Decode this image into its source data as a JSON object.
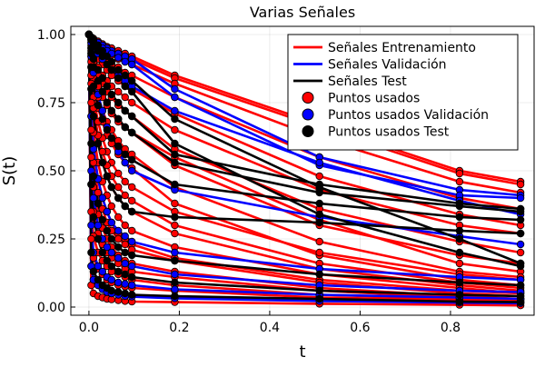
{
  "chart_data": {
    "type": "line",
    "title": "Varias Señales",
    "xlabel": "t",
    "ylabel": "S(t)",
    "xlim": [
      -0.04,
      0.985
    ],
    "ylim": [
      -0.03,
      1.03
    ],
    "xticks": [
      0.0,
      0.2,
      0.4,
      0.6,
      0.8
    ],
    "xtick_labels": [
      "0.0",
      "0.2",
      "0.4",
      "0.6",
      "0.8"
    ],
    "yticks": [
      0.0,
      0.25,
      0.5,
      0.75,
      1.0
    ],
    "ytick_labels": [
      "0.00",
      "0.25",
      "0.50",
      "0.75",
      "1.00"
    ],
    "grid": true,
    "legend_position": "top-right",
    "legend": [
      {
        "label": "Señales Entrenamiento",
        "kind": "line",
        "color": "#ff0000"
      },
      {
        "label": "Señales Validación",
        "kind": "line",
        "color": "#0000ff"
      },
      {
        "label": "Señales Test",
        "kind": "line",
        "color": "#000000"
      },
      {
        "label": "Puntos usados",
        "kind": "marker",
        "color": "#ff0000"
      },
      {
        "label": "Puntos usados Validación",
        "kind": "marker",
        "color": "#0000ff"
      },
      {
        "label": "Puntos usados Test",
        "kind": "marker",
        "color": "#000000"
      }
    ],
    "x": [
      0.0,
      0.005,
      0.01,
      0.02,
      0.03,
      0.04,
      0.05,
      0.065,
      0.08,
      0.095,
      0.19,
      0.51,
      0.82,
      0.955
    ],
    "series": [
      {
        "group": "train",
        "color": "#ff0000",
        "values": [
          1.0,
          0.99,
          0.985,
          0.975,
          0.965,
          0.955,
          0.95,
          0.94,
          0.93,
          0.92,
          0.85,
          0.67,
          0.5,
          0.46
        ]
      },
      {
        "group": "train",
        "color": "#ff0000",
        "values": [
          1.0,
          0.985,
          0.98,
          0.97,
          0.96,
          0.95,
          0.94,
          0.93,
          0.92,
          0.91,
          0.84,
          0.66,
          0.49,
          0.45
        ]
      },
      {
        "group": "train",
        "color": "#ff0000",
        "values": [
          1.0,
          0.98,
          0.97,
          0.955,
          0.945,
          0.935,
          0.925,
          0.91,
          0.9,
          0.89,
          0.82,
          0.62,
          0.46,
          0.42
        ]
      },
      {
        "group": "train",
        "color": "#ff0000",
        "values": [
          1.0,
          0.97,
          0.95,
          0.93,
          0.92,
          0.9,
          0.89,
          0.88,
          0.86,
          0.85,
          0.77,
          0.55,
          0.4,
          0.36
        ]
      },
      {
        "group": "train",
        "color": "#ff0000",
        "values": [
          1.0,
          0.96,
          0.94,
          0.91,
          0.89,
          0.87,
          0.85,
          0.83,
          0.81,
          0.8,
          0.71,
          0.48,
          0.34,
          0.3
        ]
      },
      {
        "group": "train",
        "color": "#ff0000",
        "values": [
          1.0,
          0.95,
          0.92,
          0.88,
          0.85,
          0.83,
          0.81,
          0.79,
          0.77,
          0.75,
          0.65,
          0.43,
          0.3,
          0.27
        ]
      },
      {
        "group": "train",
        "color": "#ff0000",
        "values": [
          1.0,
          0.94,
          0.9,
          0.85,
          0.82,
          0.79,
          0.77,
          0.74,
          0.72,
          0.7,
          0.58,
          0.36,
          0.24,
          0.2
        ]
      },
      {
        "group": "train",
        "color": "#ff0000",
        "values": [
          1.0,
          0.93,
          0.88,
          0.82,
          0.78,
          0.75,
          0.72,
          0.69,
          0.66,
          0.64,
          0.52,
          0.3,
          0.19,
          0.16
        ]
      },
      {
        "group": "train",
        "color": "#ff0000",
        "values": [
          1.0,
          0.92,
          0.87,
          0.81,
          0.77,
          0.74,
          0.71,
          0.68,
          0.66,
          0.64,
          0.55,
          0.32,
          0.16,
          0.13
        ]
      },
      {
        "group": "train",
        "color": "#ff0000",
        "values": [
          1.0,
          0.9,
          0.84,
          0.77,
          0.72,
          0.68,
          0.65,
          0.61,
          0.58,
          0.56,
          0.44,
          0.24,
          0.13,
          0.11
        ]
      },
      {
        "group": "train",
        "color": "#ff0000",
        "values": [
          1.0,
          0.88,
          0.81,
          0.73,
          0.68,
          0.63,
          0.6,
          0.56,
          0.53,
          0.51,
          0.38,
          0.19,
          0.1,
          0.08
        ]
      },
      {
        "group": "train",
        "color": "#ff0000",
        "values": [
          1.0,
          0.85,
          0.77,
          0.68,
          0.62,
          0.57,
          0.53,
          0.49,
          0.46,
          0.44,
          0.35,
          0.2,
          0.12,
          0.1
        ]
      },
      {
        "group": "train",
        "color": "#ff0000",
        "values": [
          1.0,
          0.82,
          0.73,
          0.63,
          0.57,
          0.52,
          0.48,
          0.44,
          0.41,
          0.39,
          0.3,
          0.16,
          0.09,
          0.07
        ]
      },
      {
        "group": "train",
        "color": "#ff0000",
        "values": [
          1.0,
          0.8,
          0.7,
          0.6,
          0.53,
          0.48,
          0.44,
          0.4,
          0.37,
          0.35,
          0.27,
          0.14,
          0.08,
          0.06
        ]
      },
      {
        "group": "train",
        "color": "#ff0000",
        "values": [
          1.0,
          0.75,
          0.64,
          0.53,
          0.46,
          0.41,
          0.37,
          0.33,
          0.3,
          0.28,
          0.22,
          0.12,
          0.07,
          0.05
        ]
      },
      {
        "group": "train",
        "color": "#ff0000",
        "values": [
          1.0,
          0.7,
          0.58,
          0.47,
          0.4,
          0.35,
          0.31,
          0.27,
          0.25,
          0.23,
          0.18,
          0.1,
          0.06,
          0.05
        ]
      },
      {
        "group": "train",
        "color": "#ff0000",
        "values": [
          1.0,
          0.65,
          0.53,
          0.42,
          0.36,
          0.31,
          0.28,
          0.25,
          0.23,
          0.21,
          0.17,
          0.09,
          0.05,
          0.04
        ]
      },
      {
        "group": "train",
        "color": "#ff0000",
        "values": [
          1.0,
          0.55,
          0.44,
          0.34,
          0.29,
          0.25,
          0.22,
          0.19,
          0.17,
          0.16,
          0.13,
          0.07,
          0.04,
          0.03
        ]
      },
      {
        "group": "train",
        "color": "#ff0000",
        "values": [
          1.0,
          0.45,
          0.35,
          0.27,
          0.23,
          0.2,
          0.18,
          0.16,
          0.14,
          0.13,
          0.11,
          0.06,
          0.035,
          0.03
        ]
      },
      {
        "group": "train",
        "color": "#ff0000",
        "values": [
          1.0,
          0.35,
          0.26,
          0.2,
          0.17,
          0.15,
          0.13,
          0.12,
          0.11,
          0.1,
          0.08,
          0.045,
          0.03,
          0.025
        ]
      },
      {
        "group": "train",
        "color": "#ff0000",
        "values": [
          1.0,
          0.25,
          0.18,
          0.14,
          0.12,
          0.1,
          0.09,
          0.08,
          0.075,
          0.07,
          0.06,
          0.035,
          0.025,
          0.02
        ]
      },
      {
        "group": "train",
        "color": "#ff0000",
        "values": [
          1.0,
          0.15,
          0.1,
          0.08,
          0.07,
          0.06,
          0.055,
          0.05,
          0.045,
          0.04,
          0.035,
          0.025,
          0.02,
          0.015
        ]
      },
      {
        "group": "train",
        "color": "#ff0000",
        "values": [
          1.0,
          0.08,
          0.05,
          0.04,
          0.035,
          0.03,
          0.028,
          0.025,
          0.022,
          0.02,
          0.018,
          0.012,
          0.008,
          0.006
        ]
      },
      {
        "group": "valid",
        "color": "#0000ff",
        "values": [
          1.0,
          0.99,
          0.98,
          0.97,
          0.96,
          0.95,
          0.94,
          0.93,
          0.92,
          0.91,
          0.8,
          0.55,
          0.43,
          0.41
        ]
      },
      {
        "group": "valid",
        "color": "#0000ff",
        "values": [
          1.0,
          0.985,
          0.975,
          0.96,
          0.95,
          0.94,
          0.93,
          0.915,
          0.9,
          0.89,
          0.77,
          0.52,
          0.41,
          0.4
        ]
      },
      {
        "group": "valid",
        "color": "#0000ff",
        "values": [
          1.0,
          0.97,
          0.95,
          0.93,
          0.91,
          0.89,
          0.87,
          0.85,
          0.83,
          0.81,
          0.72,
          0.53,
          0.39,
          0.34
        ]
      },
      {
        "group": "valid",
        "color": "#0000ff",
        "values": [
          1.0,
          0.92,
          0.86,
          0.78,
          0.72,
          0.66,
          0.62,
          0.57,
          0.53,
          0.5,
          0.43,
          0.33,
          0.26,
          0.23
        ]
      },
      {
        "group": "valid",
        "color": "#0000ff",
        "values": [
          1.0,
          0.7,
          0.58,
          0.47,
          0.4,
          0.35,
          0.31,
          0.28,
          0.26,
          0.24,
          0.2,
          0.14,
          0.11,
          0.1
        ]
      },
      {
        "group": "valid",
        "color": "#0000ff",
        "values": [
          1.0,
          0.5,
          0.4,
          0.3,
          0.25,
          0.22,
          0.2,
          0.18,
          0.16,
          0.15,
          0.12,
          0.08,
          0.06,
          0.055
        ]
      },
      {
        "group": "valid",
        "color": "#0000ff",
        "values": [
          1.0,
          0.3,
          0.2,
          0.15,
          0.13,
          0.11,
          0.1,
          0.09,
          0.085,
          0.08,
          0.065,
          0.045,
          0.035,
          0.03
        ]
      },
      {
        "group": "valid",
        "color": "#0000ff",
        "values": [
          1.0,
          0.15,
          0.1,
          0.08,
          0.065,
          0.055,
          0.05,
          0.045,
          0.04,
          0.038,
          0.032,
          0.022,
          0.016,
          0.014
        ]
      },
      {
        "group": "test",
        "color": "#000000",
        "values": [
          1.0,
          0.99,
          0.98,
          0.96,
          0.94,
          0.92,
          0.9,
          0.87,
          0.85,
          0.83,
          0.69,
          0.44,
          0.25,
          0.16
        ]
      },
      {
        "group": "test",
        "color": "#000000",
        "values": [
          1.0,
          0.98,
          0.96,
          0.94,
          0.92,
          0.89,
          0.87,
          0.84,
          0.81,
          0.79,
          0.6,
          0.34,
          0.2,
          0.15
        ]
      },
      {
        "group": "test",
        "color": "#000000",
        "values": [
          1.0,
          0.95,
          0.91,
          0.87,
          0.84,
          0.81,
          0.78,
          0.75,
          0.72,
          0.7,
          0.56,
          0.45,
          0.38,
          0.36
        ]
      },
      {
        "group": "test",
        "color": "#000000",
        "values": [
          1.0,
          0.93,
          0.88,
          0.83,
          0.79,
          0.75,
          0.72,
          0.69,
          0.66,
          0.64,
          0.53,
          0.42,
          0.37,
          0.35
        ]
      },
      {
        "group": "test",
        "color": "#000000",
        "values": [
          1.0,
          0.88,
          0.81,
          0.74,
          0.69,
          0.65,
          0.62,
          0.59,
          0.56,
          0.54,
          0.45,
          0.38,
          0.33,
          0.32
        ]
      },
      {
        "group": "test",
        "color": "#000000",
        "values": [
          1.0,
          0.8,
          0.7,
          0.6,
          0.53,
          0.48,
          0.44,
          0.4,
          0.37,
          0.35,
          0.33,
          0.31,
          0.28,
          0.27
        ]
      },
      {
        "group": "test",
        "color": "#000000",
        "values": [
          1.0,
          0.6,
          0.48,
          0.38,
          0.32,
          0.28,
          0.25,
          0.22,
          0.2,
          0.19,
          0.17,
          0.12,
          0.09,
          0.08
        ]
      },
      {
        "group": "test",
        "color": "#000000",
        "values": [
          1.0,
          0.45,
          0.33,
          0.25,
          0.2,
          0.17,
          0.15,
          0.13,
          0.12,
          0.11,
          0.09,
          0.06,
          0.045,
          0.04
        ]
      },
      {
        "group": "test",
        "color": "#000000",
        "values": [
          1.0,
          0.2,
          0.13,
          0.1,
          0.08,
          0.07,
          0.06,
          0.055,
          0.05,
          0.045,
          0.04,
          0.03,
          0.02,
          0.018
        ]
      }
    ]
  }
}
